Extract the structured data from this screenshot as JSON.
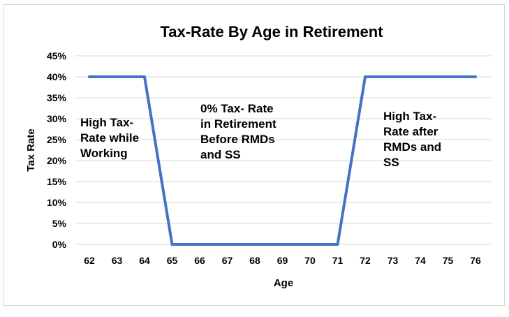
{
  "chart_data": {
    "type": "line",
    "title": "Tax-Rate By Age in Retirement",
    "xlabel": "Age",
    "ylabel": "Tax Rate",
    "x": [
      62,
      63,
      64,
      65,
      66,
      67,
      68,
      69,
      70,
      71,
      72,
      73,
      74,
      75,
      76
    ],
    "values": [
      40,
      40,
      40,
      0,
      0,
      0,
      0,
      0,
      0,
      0,
      40,
      40,
      40,
      40,
      40
    ],
    "ylim": [
      0,
      45
    ],
    "yticks": [
      "0%",
      "5%",
      "10%",
      "15%",
      "20%",
      "25%",
      "30%",
      "35%",
      "40%",
      "45%"
    ],
    "grid": true,
    "series_color": "#4472c4",
    "annotations": [
      {
        "lines": [
          "High Tax-",
          "Rate while",
          "Working"
        ]
      },
      {
        "lines": [
          "0% Tax- Rate",
          "in Retirement",
          "Before RMDs",
          "and SS"
        ]
      },
      {
        "lines": [
          "High Tax-",
          "Rate after",
          "RMDs and",
          "SS"
        ]
      }
    ]
  }
}
